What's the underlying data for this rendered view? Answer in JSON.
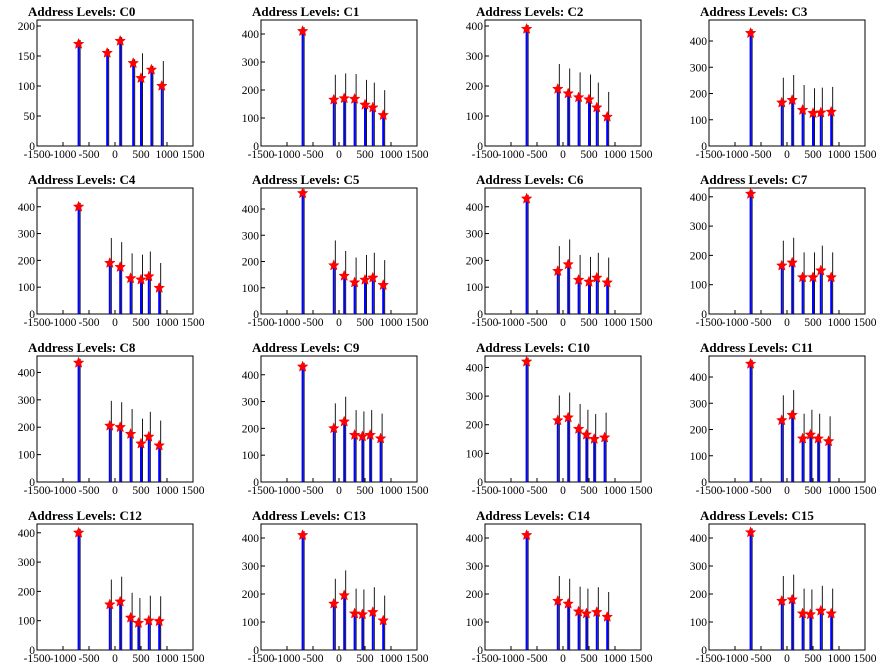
{
  "colors": {
    "spike": "#0000ff",
    "peak_marker": "#ff0000",
    "axis": "#000000"
  },
  "chart_data": [
    {
      "type": "bar",
      "title": "Address Levels: C0",
      "xlim": [
        -1500,
        1500
      ],
      "ylim": [
        0,
        210
      ],
      "yticks": [
        0,
        50,
        100,
        150,
        200
      ],
      "xticks": [
        "-1500",
        "-1000",
        "-500",
        "0",
        "500",
        "1000",
        "1500"
      ],
      "peaks": [
        {
          "x": -700,
          "y": 170
        },
        {
          "x": -150,
          "y": 155
        },
        {
          "x": 100,
          "y": 175
        },
        {
          "x": 350,
          "y": 138
        },
        {
          "x": 500,
          "y": 113
        },
        {
          "x": 700,
          "y": 127
        },
        {
          "x": 900,
          "y": 100
        }
      ]
    },
    {
      "type": "bar",
      "title": "Address Levels: C1",
      "xlim": [
        -1500,
        1500
      ],
      "ylim": [
        0,
        450
      ],
      "yticks": [
        0,
        100,
        200,
        300,
        400
      ],
      "xticks": [
        "-1500",
        "-1000",
        "-500",
        "0",
        "500",
        "1000",
        "1500"
      ],
      "peaks": [
        {
          "x": -700,
          "y": 410
        },
        {
          "x": -100,
          "y": 165
        },
        {
          "x": 100,
          "y": 170
        },
        {
          "x": 300,
          "y": 168
        },
        {
          "x": 500,
          "y": 147
        },
        {
          "x": 650,
          "y": 137
        },
        {
          "x": 850,
          "y": 110
        }
      ]
    },
    {
      "type": "bar",
      "title": "Address Levels: C2",
      "xlim": [
        -1500,
        1500
      ],
      "ylim": [
        0,
        420
      ],
      "yticks": [
        0,
        100,
        200,
        300,
        400
      ],
      "xticks": [
        "-1500",
        "-1000",
        "-500",
        "0",
        "500",
        "1000",
        "1500"
      ],
      "peaks": [
        {
          "x": -700,
          "y": 390
        },
        {
          "x": -100,
          "y": 190
        },
        {
          "x": 100,
          "y": 175
        },
        {
          "x": 300,
          "y": 162
        },
        {
          "x": 500,
          "y": 155
        },
        {
          "x": 650,
          "y": 128
        },
        {
          "x": 850,
          "y": 97
        }
      ]
    },
    {
      "type": "bar",
      "title": "Address Levels: C3",
      "xlim": [
        -1500,
        1500
      ],
      "ylim": [
        0,
        480
      ],
      "yticks": [
        0,
        100,
        200,
        300,
        400
      ],
      "xticks": [
        "-1500",
        "-1000",
        "-500",
        "0",
        "500",
        "1000",
        "1500"
      ],
      "peaks": [
        {
          "x": -700,
          "y": 430
        },
        {
          "x": -100,
          "y": 165
        },
        {
          "x": 100,
          "y": 175
        },
        {
          "x": 300,
          "y": 137
        },
        {
          "x": 500,
          "y": 125
        },
        {
          "x": 650,
          "y": 127
        },
        {
          "x": 850,
          "y": 130
        }
      ]
    },
    {
      "type": "bar",
      "title": "Address Levels: C4",
      "xlim": [
        -1500,
        1500
      ],
      "ylim": [
        0,
        470
      ],
      "yticks": [
        0,
        100,
        200,
        300,
        400
      ],
      "xticks": [
        "-1500",
        "-1000",
        "-500",
        "0",
        "500",
        "1000",
        "1500"
      ],
      "peaks": [
        {
          "x": -700,
          "y": 400
        },
        {
          "x": -100,
          "y": 190
        },
        {
          "x": 100,
          "y": 175
        },
        {
          "x": 300,
          "y": 133
        },
        {
          "x": 500,
          "y": 128
        },
        {
          "x": 650,
          "y": 140
        },
        {
          "x": 850,
          "y": 97
        }
      ]
    },
    {
      "type": "bar",
      "title": "Address Levels: C5",
      "xlim": [
        -1500,
        1500
      ],
      "ylim": [
        0,
        480
      ],
      "yticks": [
        0,
        100,
        200,
        300,
        400
      ],
      "xticks": [
        "-1500",
        "-1000",
        "-500",
        "0",
        "500",
        "1000",
        "1500"
      ],
      "peaks": [
        {
          "x": -700,
          "y": 460
        },
        {
          "x": -100,
          "y": 185
        },
        {
          "x": 100,
          "y": 145
        },
        {
          "x": 300,
          "y": 120
        },
        {
          "x": 500,
          "y": 130
        },
        {
          "x": 650,
          "y": 138
        },
        {
          "x": 850,
          "y": 110
        }
      ]
    },
    {
      "type": "bar",
      "title": "Address Levels: C6",
      "xlim": [
        -1500,
        1500
      ],
      "ylim": [
        0,
        470
      ],
      "yticks": [
        0,
        100,
        200,
        300,
        400
      ],
      "xticks": [
        "-1500",
        "-1000",
        "-500",
        "0",
        "500",
        "1000",
        "1500"
      ],
      "peaks": [
        {
          "x": -700,
          "y": 430
        },
        {
          "x": -100,
          "y": 160
        },
        {
          "x": 100,
          "y": 185
        },
        {
          "x": 300,
          "y": 127
        },
        {
          "x": 500,
          "y": 120
        },
        {
          "x": 650,
          "y": 135
        },
        {
          "x": 850,
          "y": 117
        }
      ]
    },
    {
      "type": "bar",
      "title": "Address Levels: C7",
      "xlim": [
        -1500,
        1500
      ],
      "ylim": [
        0,
        430
      ],
      "yticks": [
        0,
        100,
        200,
        300,
        400
      ],
      "xticks": [
        "-1500",
        "-1000",
        "-500",
        "0",
        "500",
        "1000",
        "1500"
      ],
      "peaks": [
        {
          "x": -700,
          "y": 410
        },
        {
          "x": -100,
          "y": 165
        },
        {
          "x": 100,
          "y": 175
        },
        {
          "x": 300,
          "y": 125
        },
        {
          "x": 500,
          "y": 125
        },
        {
          "x": 650,
          "y": 148
        },
        {
          "x": 850,
          "y": 125
        }
      ]
    },
    {
      "type": "bar",
      "title": "Address Levels: C8",
      "xlim": [
        -1500,
        1500
      ],
      "ylim": [
        0,
        460
      ],
      "yticks": [
        0,
        100,
        200,
        300,
        400
      ],
      "xticks": [
        "-1500",
        "-1000",
        "-500",
        "0",
        "500",
        "1000",
        "1500"
      ],
      "peaks": [
        {
          "x": -700,
          "y": 435
        },
        {
          "x": -100,
          "y": 205
        },
        {
          "x": 100,
          "y": 200
        },
        {
          "x": 300,
          "y": 175
        },
        {
          "x": 500,
          "y": 140
        },
        {
          "x": 650,
          "y": 165
        },
        {
          "x": 850,
          "y": 133
        }
      ]
    },
    {
      "type": "bar",
      "title": "Address Levels: C9",
      "xlim": [
        -1500,
        1500
      ],
      "ylim": [
        0,
        470
      ],
      "yticks": [
        0,
        100,
        200,
        300,
        400
      ],
      "xticks": [
        "-1500",
        "-1000",
        "-500",
        "0",
        "500",
        "1000",
        "1500"
      ],
      "peaks": [
        {
          "x": -700,
          "y": 430
        },
        {
          "x": -100,
          "y": 200
        },
        {
          "x": 100,
          "y": 225
        },
        {
          "x": 300,
          "y": 175
        },
        {
          "x": 450,
          "y": 170
        },
        {
          "x": 600,
          "y": 175
        },
        {
          "x": 800,
          "y": 162
        }
      ]
    },
    {
      "type": "bar",
      "title": "Address Levels: C10",
      "xlim": [
        -1500,
        1500
      ],
      "ylim": [
        0,
        440
      ],
      "yticks": [
        0,
        100,
        200,
        300,
        400
      ],
      "xticks": [
        "-1500",
        "-1000",
        "-500",
        "0",
        "500",
        "1000",
        "1500"
      ],
      "peaks": [
        {
          "x": -700,
          "y": 420
        },
        {
          "x": -100,
          "y": 215
        },
        {
          "x": 100,
          "y": 225
        },
        {
          "x": 300,
          "y": 185
        },
        {
          "x": 450,
          "y": 165
        },
        {
          "x": 600,
          "y": 150
        },
        {
          "x": 800,
          "y": 155
        }
      ]
    },
    {
      "type": "bar",
      "title": "Address Levels: C11",
      "xlim": [
        -1500,
        1500
      ],
      "ylim": [
        0,
        480
      ],
      "yticks": [
        0,
        100,
        200,
        300,
        400
      ],
      "xticks": [
        "-1500",
        "-1000",
        "-500",
        "0",
        "500",
        "1000",
        "1500"
      ],
      "peaks": [
        {
          "x": -700,
          "y": 450
        },
        {
          "x": -100,
          "y": 235
        },
        {
          "x": 100,
          "y": 255
        },
        {
          "x": 300,
          "y": 165
        },
        {
          "x": 450,
          "y": 180
        },
        {
          "x": 600,
          "y": 165
        },
        {
          "x": 800,
          "y": 155
        }
      ]
    },
    {
      "type": "bar",
      "title": "Address Levels: C12",
      "xlim": [
        -1500,
        1500
      ],
      "ylim": [
        0,
        430
      ],
      "yticks": [
        0,
        100,
        200,
        300,
        400
      ],
      "xticks": [
        "-1500",
        "-1000",
        "-500",
        "0",
        "500",
        "1000",
        "1500"
      ],
      "peaks": [
        {
          "x": -700,
          "y": 400
        },
        {
          "x": -100,
          "y": 155
        },
        {
          "x": 100,
          "y": 165
        },
        {
          "x": 300,
          "y": 110
        },
        {
          "x": 450,
          "y": 92
        },
        {
          "x": 650,
          "y": 100
        },
        {
          "x": 850,
          "y": 98
        }
      ]
    },
    {
      "type": "bar",
      "title": "Address Levels: C13",
      "xlim": [
        -1500,
        1500
      ],
      "ylim": [
        0,
        450
      ],
      "yticks": [
        0,
        100,
        200,
        300,
        400
      ],
      "xticks": [
        "-1500",
        "-1000",
        "-500",
        "0",
        "500",
        "1000",
        "1500"
      ],
      "peaks": [
        {
          "x": -700,
          "y": 410
        },
        {
          "x": -100,
          "y": 165
        },
        {
          "x": 100,
          "y": 195
        },
        {
          "x": 300,
          "y": 130
        },
        {
          "x": 450,
          "y": 127
        },
        {
          "x": 650,
          "y": 135
        },
        {
          "x": 850,
          "y": 105
        }
      ]
    },
    {
      "type": "bar",
      "title": "Address Levels: C14",
      "xlim": [
        -1500,
        1500
      ],
      "ylim": [
        0,
        450
      ],
      "yticks": [
        0,
        100,
        200,
        300,
        400
      ],
      "xticks": [
        "-1500",
        "-1000",
        "-500",
        "0",
        "500",
        "1000",
        "1500"
      ],
      "peaks": [
        {
          "x": -700,
          "y": 410
        },
        {
          "x": -100,
          "y": 175
        },
        {
          "x": 100,
          "y": 165
        },
        {
          "x": 300,
          "y": 137
        },
        {
          "x": 450,
          "y": 130
        },
        {
          "x": 650,
          "y": 135
        },
        {
          "x": 850,
          "y": 118
        }
      ]
    },
    {
      "type": "bar",
      "title": "Address Levels: C15",
      "xlim": [
        -1500,
        1500
      ],
      "ylim": [
        0,
        450
      ],
      "yticks": [
        0,
        100,
        200,
        300,
        400
      ],
      "xticks": [
        "-1500",
        "-1000",
        "-500",
        "0",
        "500",
        "1000",
        "1500"
      ],
      "peaks": [
        {
          "x": -700,
          "y": 420
        },
        {
          "x": -100,
          "y": 175
        },
        {
          "x": 100,
          "y": 180
        },
        {
          "x": 300,
          "y": 130
        },
        {
          "x": 450,
          "y": 127
        },
        {
          "x": 650,
          "y": 140
        },
        {
          "x": 850,
          "y": 130
        }
      ]
    }
  ]
}
